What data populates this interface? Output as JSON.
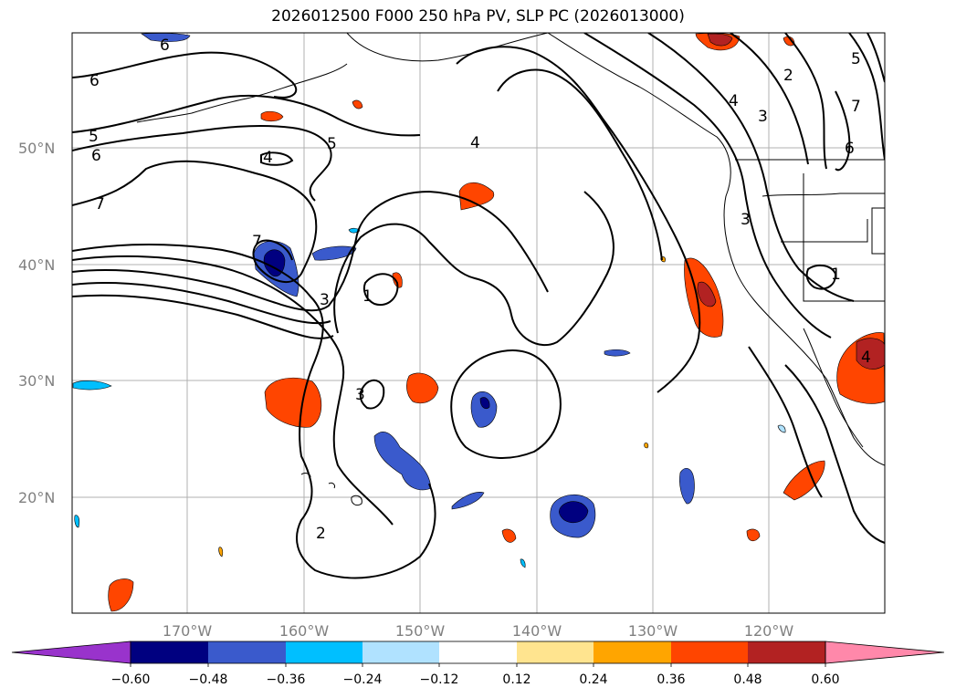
{
  "title": "2026012500 F000 250 hPa PV, SLP PC (2026013000)",
  "lat_labels": [
    "50°N",
    "40°N",
    "30°N",
    "20°N"
  ],
  "lon_labels": [
    "170°W",
    "160°W",
    "150°W",
    "140°W",
    "130°W",
    "120°W"
  ],
  "contour_labels": [
    "6",
    "6",
    "5",
    "6",
    "4",
    "5",
    "7",
    "4",
    "7",
    "3",
    "1",
    "3",
    "2",
    "4",
    "3",
    "3",
    "2",
    "5",
    "7",
    "6",
    "1",
    "4"
  ],
  "colorbar": {
    "ticks": [
      "−0.60",
      "−0.48",
      "−0.36",
      "−0.24",
      "−0.12",
      "0.12",
      "0.24",
      "0.36",
      "0.48",
      "0.60"
    ],
    "colors": [
      "#9933cc",
      "#000080",
      "#3a5acc",
      "#00bfff",
      "#b0e2ff",
      "#ffffff",
      "#ffe48f",
      "#ffa500",
      "#ff4500",
      "#b22222",
      "#ff88aa"
    ]
  },
  "colors": {
    "neg_dark": "#000080",
    "neg_mid": "#3a5acc",
    "neg_light": "#00bfff",
    "neg_pale": "#b0e2ff",
    "pos_pale": "#ffe48f",
    "pos_mid": "#ffa500",
    "pos_strong": "#ff4500",
    "pos_dark": "#b22222"
  }
}
